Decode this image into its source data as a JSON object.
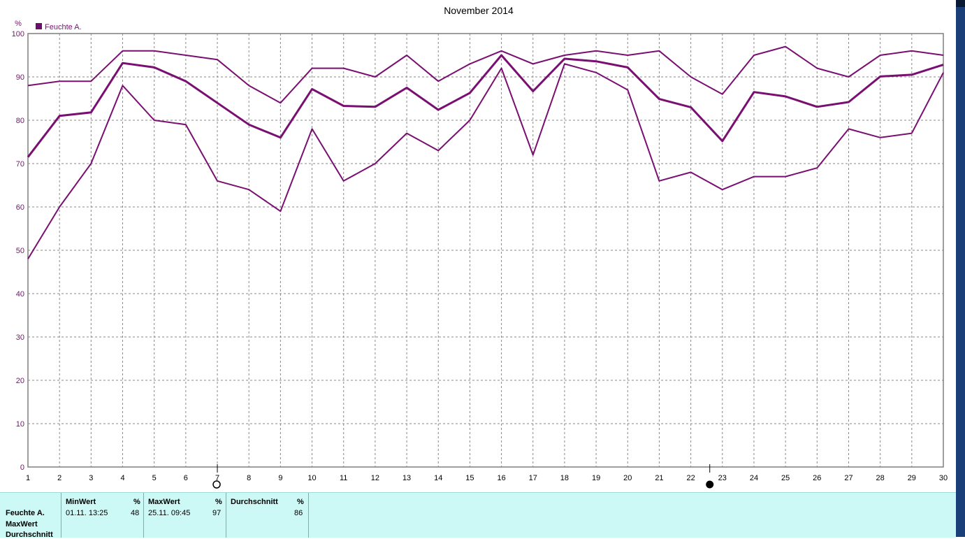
{
  "chart_data": {
    "type": "line",
    "title": "November 2014",
    "ylabel": "%",
    "xlabel": "",
    "ylim": [
      0,
      100
    ],
    "yticks": [
      0,
      10,
      20,
      30,
      40,
      50,
      60,
      70,
      80,
      90,
      100
    ],
    "x": [
      1,
      2,
      3,
      4,
      5,
      6,
      7,
      8,
      9,
      10,
      11,
      12,
      13,
      14,
      15,
      16,
      17,
      18,
      19,
      20,
      21,
      22,
      23,
      24,
      25,
      26,
      27,
      28,
      29,
      30
    ],
    "legend": {
      "label": "Feuchte A.",
      "position": "top-left"
    },
    "grid": true,
    "series": [
      {
        "role": "max",
        "values": [
          88,
          89,
          89,
          96,
          96,
          95,
          94,
          88,
          84,
          92,
          92,
          90,
          95,
          89,
          93,
          96,
          93,
          95,
          96,
          95,
          96,
          90,
          86,
          95,
          97,
          92,
          90,
          95,
          96,
          95
        ]
      },
      {
        "role": "mean",
        "values": [
          71.5,
          81,
          81.8,
          93.2,
          92.2,
          89,
          84,
          79,
          76,
          87.2,
          83.3,
          83.1,
          87.5,
          82.4,
          86.3,
          95,
          86.7,
          94.2,
          93.6,
          92.2,
          84.9,
          83,
          75.2,
          86.5,
          85.5,
          83.1,
          84.2,
          90.1,
          90.5,
          92.8
        ]
      },
      {
        "role": "min",
        "values": [
          48,
          60,
          70,
          88,
          80,
          79,
          66,
          64,
          59,
          78,
          66,
          70,
          77,
          73,
          80,
          92,
          72,
          93,
          91,
          87,
          66,
          68,
          64,
          67,
          67,
          69,
          78,
          76,
          77,
          91
        ]
      }
    ],
    "colors": {
      "lines": "#7a0f72",
      "axis_text": "#7a0f72",
      "legend_box": "#6a1068"
    },
    "markers": [
      {
        "x": 7,
        "symbol": "hollow-circle"
      },
      {
        "x": 22.6,
        "symbol": "filled-circle"
      }
    ]
  },
  "stats": {
    "row_labels": [
      "Feuchte A.",
      "MaxWert",
      "Durchschnitt"
    ],
    "columns": [
      {
        "header": "MinWert",
        "unit": "%",
        "time": "01.11.  13:25",
        "value": "48"
      },
      {
        "header": "MaxWert",
        "unit": "%",
        "time": "25.11.  09:45",
        "value": "97"
      },
      {
        "header": "Durchschnitt",
        "unit": "%",
        "time": "",
        "value": "86"
      }
    ]
  }
}
